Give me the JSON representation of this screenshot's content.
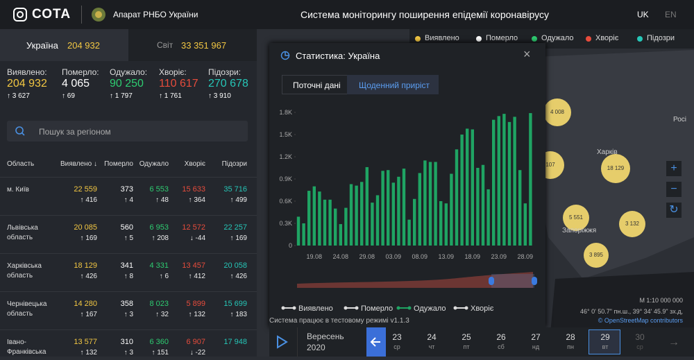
{
  "header": {
    "logo": "СОТА",
    "org": "Апарат РНБО України",
    "title": "Система моніторингу поширення епідемії коронавірусу",
    "langs": [
      "UK",
      "EN"
    ]
  },
  "summary": [
    {
      "label": "Україна",
      "value": "204 932"
    },
    {
      "label": "Світ",
      "value": "33 351 967"
    }
  ],
  "stats": [
    {
      "label": "Виявлено:",
      "value": "204 932",
      "delta": "3 627"
    },
    {
      "label": "Померло:",
      "value": "4 065",
      "delta": "69"
    },
    {
      "label": "Одужало:",
      "value": "90 250",
      "delta": "1 797"
    },
    {
      "label": "Хворіє:",
      "value": "110 617",
      "delta": "1 761"
    },
    {
      "label": "Підозри:",
      "value": "270 678",
      "delta": "3 910"
    }
  ],
  "search_placeholder": "Пошук за регіоном",
  "table": {
    "columns": [
      "Область",
      "Виявлено ↓",
      "Померло",
      "Одужало",
      "Хворіє",
      "Підозри"
    ],
    "rows": [
      [
        "м. Київ",
        [
          "22 559",
          "416"
        ],
        [
          "373",
          "4"
        ],
        [
          "6 553",
          "48"
        ],
        [
          "15 633",
          "364"
        ],
        [
          "35 716",
          "499"
        ]
      ],
      [
        "Львівська область",
        [
          "20 085",
          "169"
        ],
        [
          "560",
          "5"
        ],
        [
          "6 953",
          "208"
        ],
        [
          "12 572",
          "-44"
        ],
        [
          "22 257",
          "169"
        ]
      ],
      [
        "Харківська область",
        [
          "18 129",
          "426"
        ],
        [
          "341",
          "8"
        ],
        [
          "4 331",
          "6"
        ],
        [
          "13 457",
          "412"
        ],
        [
          "20 058",
          "426"
        ]
      ],
      [
        "Чернівецька область",
        [
          "14 280",
          "167"
        ],
        [
          "358",
          "3"
        ],
        [
          "8 023",
          "32"
        ],
        [
          "5 899",
          "132"
        ],
        [
          "15 699",
          "183"
        ]
      ],
      [
        "Івано-Франківська",
        [
          "13 577",
          "132"
        ],
        [
          "310",
          "3"
        ],
        [
          "6 360",
          "151"
        ],
        [
          "6 907",
          "-22"
        ],
        [
          "17 948"
        ]
      ]
    ]
  },
  "map": {
    "legend": [
      "Виявлено",
      "Померло",
      "Одужало",
      "Хворіє",
      "Підозри"
    ],
    "clusters": [
      "4 008",
      "107",
      "18 129",
      "5 551",
      "3 132",
      "3 895"
    ],
    "places": [
      "Харків",
      "Запоріжжя",
      "Росі"
    ],
    "scale": "М 1:10 000 000",
    "coords": "46° 0' 50.7\" пн.ш., 39° 34' 45.9\" зх.д,",
    "attribution": "© OpenStreetMap contributors"
  },
  "modal": {
    "title": "Статистика: Україна",
    "tabs": [
      "Поточні дані",
      "Щоденний приріст"
    ]
  },
  "chart_data": {
    "type": "bar",
    "color": "#1fa463",
    "categories": [
      null,
      null,
      null,
      "19.08",
      null,
      null,
      null,
      null,
      "24.08",
      null,
      null,
      null,
      null,
      "29.08",
      null,
      null,
      null,
      null,
      "03.09",
      null,
      null,
      null,
      null,
      "08.09",
      null,
      null,
      null,
      null,
      "13.09",
      null,
      null,
      null,
      null,
      "18.09",
      null,
      null,
      null,
      null,
      "23.09",
      null,
      null,
      null,
      null,
      "28.09",
      null
    ],
    "values": [
      390,
      300,
      740,
      800,
      730,
      620,
      620,
      500,
      290,
      510,
      830,
      810,
      860,
      1060,
      580,
      680,
      1010,
      1020,
      850,
      930,
      1040,
      350,
      630,
      980,
      1150,
      1130,
      1130,
      600,
      570,
      970,
      1300,
      1500,
      1580,
      1570,
      1050,
      1090,
      760,
      1700,
      1750,
      1780,
      1670,
      1740,
      1020,
      570,
      1790
    ],
    "ylim": [
      0,
      1800
    ],
    "yticks": [
      0,
      {
        "value": 300,
        "label": "0.3K"
      },
      {
        "value": 600,
        "label": "0.6K"
      },
      {
        "value": 900,
        "label": "0.9K"
      },
      {
        "value": 1200,
        "label": "1.2K"
      },
      {
        "value": 1500,
        "label": "1.5K"
      },
      {
        "value": 1800,
        "label": "1.8K"
      }
    ],
    "legend": [
      "Виявлено",
      "Померло",
      "Одужало",
      "Хворіє"
    ]
  },
  "footer": "Система працює в тестовому режимі v1.1.3",
  "timeline": {
    "month": "Вересень",
    "year": "2020",
    "days": [
      [
        "23",
        "ср"
      ],
      [
        "24",
        "чт"
      ],
      [
        "25",
        "пт"
      ],
      [
        "26",
        "сб"
      ],
      [
        "27",
        "нд"
      ],
      [
        "28",
        "пн"
      ],
      [
        "29",
        "вт"
      ],
      [
        "30",
        "ср"
      ]
    ]
  }
}
